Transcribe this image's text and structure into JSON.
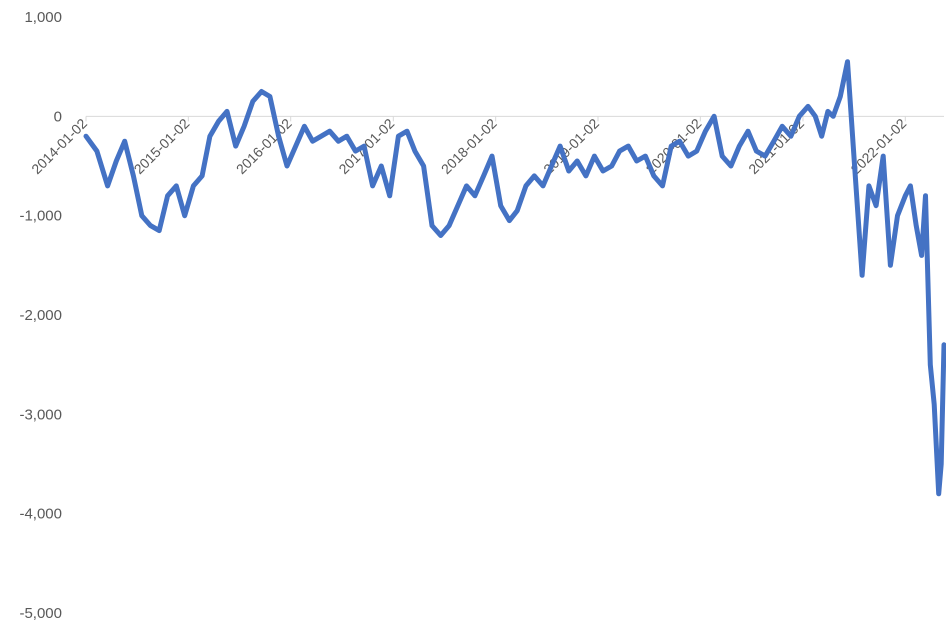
{
  "chart_data": {
    "type": "line",
    "title": "",
    "xlabel": "",
    "ylabel": "",
    "ylim": [
      -5000,
      1000
    ],
    "yticks": [
      "1,000",
      "0",
      "-1,000",
      "-2,000",
      "-3,000",
      "-4,000",
      "-5,000"
    ],
    "ytick_values": [
      1000,
      0,
      -1000,
      -2000,
      -3000,
      -4000,
      -5000
    ],
    "xticks": [
      "2014-01-02",
      "2015-01-02",
      "2016-01-02",
      "2017-01-02",
      "2018-01-02",
      "2019-01-02",
      "2020-01-02",
      "2021-01-02",
      "2022-01-02"
    ],
    "xlim": [
      "2014-01-02",
      "2022-05-20"
    ],
    "grid": false,
    "legend": "none",
    "line_color": "#4472C4",
    "series": [
      {
        "x": [
          "2014-01-02",
          "2014-02-10",
          "2014-03-20",
          "2014-04-20",
          "2014-05-20",
          "2014-06-20",
          "2014-07-20",
          "2014-08-20",
          "2014-09-20",
          "2014-10-20",
          "2014-11-20",
          "2014-12-20",
          "2015-01-20",
          "2015-02-20",
          "2015-03-20",
          "2015-04-20",
          "2015-05-20",
          "2015-06-20",
          "2015-07-20",
          "2015-08-20",
          "2015-09-20",
          "2015-10-20",
          "2015-11-20",
          "2015-12-20",
          "2016-01-20",
          "2016-02-20",
          "2016-03-20",
          "2016-04-20",
          "2016-05-20",
          "2016-06-20",
          "2016-07-20",
          "2016-08-20",
          "2016-09-20",
          "2016-10-20",
          "2016-11-20",
          "2016-12-20",
          "2017-01-20",
          "2017-02-20",
          "2017-03-20",
          "2017-04-20",
          "2017-05-20",
          "2017-06-20",
          "2017-07-20",
          "2017-08-20",
          "2017-09-20",
          "2017-10-20",
          "2017-11-20",
          "2017-12-20",
          "2018-01-20",
          "2018-02-20",
          "2018-03-20",
          "2018-04-20",
          "2018-05-20",
          "2018-06-20",
          "2018-07-20",
          "2018-08-20",
          "2018-09-20",
          "2018-10-20",
          "2018-11-20",
          "2018-12-20",
          "2019-01-20",
          "2019-02-20",
          "2019-03-20",
          "2019-04-20",
          "2019-05-20",
          "2019-06-20",
          "2019-07-20",
          "2019-08-20",
          "2019-09-20",
          "2019-10-20",
          "2019-11-20",
          "2019-12-20",
          "2020-01-20",
          "2020-02-20",
          "2020-03-20",
          "2020-04-20",
          "2020-05-20",
          "2020-06-20",
          "2020-07-20",
          "2020-08-20",
          "2020-09-20",
          "2020-10-20",
          "2020-11-20",
          "2020-12-20",
          "2021-01-20",
          "2021-02-15",
          "2021-03-10",
          "2021-04-01",
          "2021-04-20",
          "2021-05-15",
          "2021-06-10",
          "2021-07-05",
          "2021-08-01",
          "2021-08-25",
          "2021-09-20",
          "2021-10-15",
          "2021-11-10",
          "2021-12-05",
          "2022-01-02",
          "2022-01-20",
          "2022-02-10",
          "2022-03-01",
          "2022-03-15",
          "2022-04-01",
          "2022-04-15",
          "2022-05-01",
          "2022-05-10",
          "2022-05-20"
        ],
        "y": [
          -200,
          -350,
          -700,
          -450,
          -250,
          -600,
          -1000,
          -1100,
          -1150,
          -800,
          -700,
          -1000,
          -700,
          -600,
          -200,
          -50,
          50,
          -300,
          -100,
          150,
          250,
          200,
          -200,
          -500,
          -300,
          -100,
          -250,
          -200,
          -150,
          -250,
          -200,
          -350,
          -300,
          -700,
          -500,
          -800,
          -200,
          -150,
          -350,
          -500,
          -1100,
          -1200,
          -1100,
          -900,
          -700,
          -800,
          -600,
          -400,
          -900,
          -1050,
          -950,
          -700,
          -600,
          -700,
          -500,
          -300,
          -550,
          -450,
          -600,
          -400,
          -550,
          -500,
          -350,
          -300,
          -450,
          -400,
          -600,
          -700,
          -300,
          -250,
          -400,
          -350,
          -150,
          0,
          -400,
          -500,
          -300,
          -150,
          -350,
          -400,
          -250,
          -100,
          -200,
          0,
          100,
          0,
          -200,
          50,
          0,
          200,
          550,
          -500,
          -1600,
          -700,
          -900,
          -400,
          -1500,
          -1000,
          -800,
          -700,
          -1100,
          -1400,
          -800,
          -2500,
          -2900,
          -3800,
          -3500,
          -2300
        ]
      }
    ]
  }
}
